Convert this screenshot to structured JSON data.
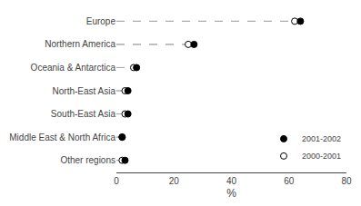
{
  "chart_data": {
    "type": "dot",
    "categories": [
      "Europe",
      "Northern America",
      "Oceania & Antarctica",
      "North-East Asia",
      "South-East Asia",
      "Middle East & North Africa",
      "Other regions"
    ],
    "series": [
      {
        "name": "2001-2002",
        "color": "black",
        "marker": "circle",
        "values": [
          64,
          27,
          7,
          4,
          4,
          2,
          3
        ]
      },
      {
        "name": "2000-2001",
        "color": "white",
        "marker": "circle",
        "values": [
          62,
          25,
          6,
          3,
          3,
          2,
          2
        ]
      }
    ],
    "xlabel": "%",
    "xlim": [
      0,
      80
    ],
    "xticks": [
      0,
      20,
      40,
      60,
      80
    ],
    "grid": false,
    "legend": "lower right"
  }
}
